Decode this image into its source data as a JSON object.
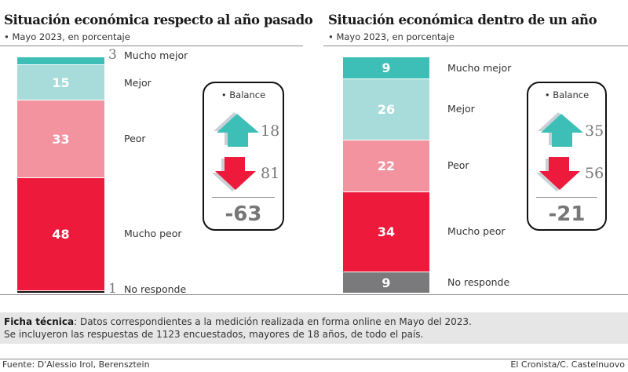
{
  "colors": {
    "mucho_mejor": "#3dbfb8",
    "mejor": "#a8dcda",
    "peor": "#f2939f",
    "mucho_peor": "#ee1a3b",
    "no_responde_left": "#111111",
    "no_responde_right": "#7a7a7c",
    "up_arrow": "#3dbfb8",
    "down_arrow": "#ee1a3b"
  },
  "chart_data": [
    {
      "type": "bar",
      "stacked": true,
      "title": "Situación económica respecto al año pasado",
      "subtitle": "• Mayo 2023, en porcentaje",
      "categories": [
        "Mucho mejor",
        "Mejor",
        "Peor",
        "Mucho peor",
        "No responde"
      ],
      "values": [
        3,
        15,
        33,
        48,
        1
      ],
      "value_labels": [
        "3",
        "15",
        "33",
        "48",
        "1"
      ],
      "balance": {
        "label": "• Balance",
        "positive": 18,
        "negative": 81,
        "total": "-63"
      }
    },
    {
      "type": "bar",
      "stacked": true,
      "title": "Situación económica dentro de un año",
      "subtitle": "• Mayo 2023, en porcentaje",
      "categories": [
        "Mucho mejor",
        "Mejor",
        "Peor",
        "Mucho peor",
        "No responde"
      ],
      "values": [
        9,
        26,
        22,
        34,
        9
      ],
      "value_labels": [
        "9",
        "26",
        "22",
        "34",
        "9"
      ],
      "balance": {
        "label": "• Balance",
        "positive": 35,
        "negative": 56,
        "total": "-21"
      }
    }
  ],
  "ficha": {
    "label": "Ficha técnica",
    "line1": ": Datos correspondientes a la medición realizada en forma online en Mayo del 2023.",
    "line2": "Se incluyeron las respuestas de 1123 encuestados, mayores de 18 años, de todo el país."
  },
  "footer": {
    "source": "Fuente: D'Alessio Irol, Berensztein",
    "credit": "El Cronista/C. Castelnuovo"
  }
}
